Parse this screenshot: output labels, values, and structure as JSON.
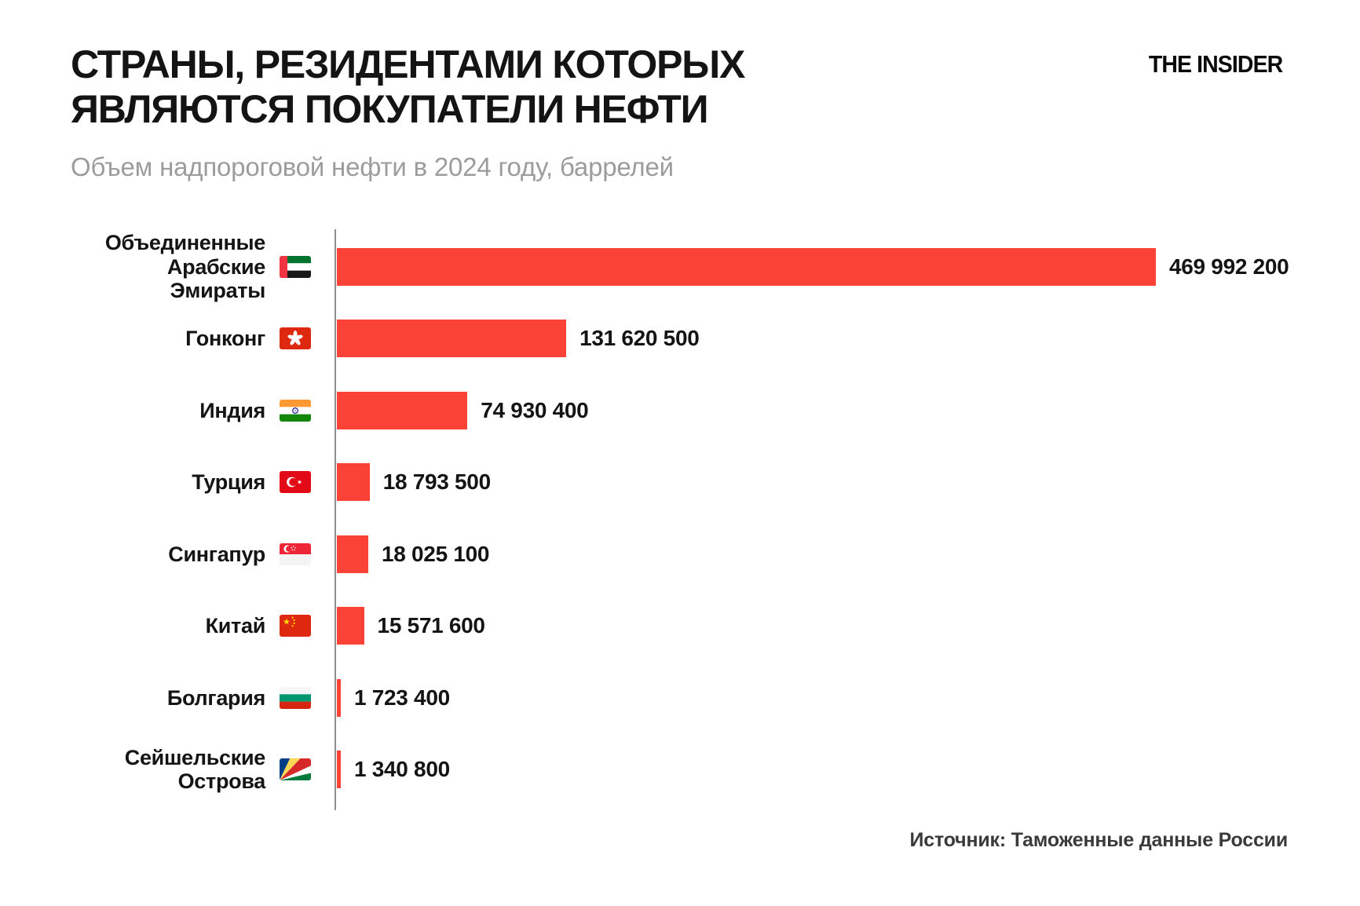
{
  "brand": {
    "logo_text": "THE INSIDER"
  },
  "header": {
    "title_line1": "СТРАНЫ, РЕЗИДЕНТАМИ КОТОРЫХ",
    "title_line2": "ЯВЛЯЮТСЯ ПОКУПАТЕЛИ НЕФТИ",
    "subtitle": "Объем надпороговой нефти в 2024 году, баррелей"
  },
  "footer": {
    "source": "Источник: Таможенные данные России"
  },
  "colors": {
    "bar": "#FA4336",
    "axis": "#8F8F8F",
    "title": "#141414",
    "subtitle": "#9C9C9C",
    "source": "#3A3A3A",
    "background": "#FFFFFF"
  },
  "chart_data": {
    "type": "bar",
    "orientation": "horizontal",
    "title": "СТРАНЫ, РЕЗИДЕНТАМИ КОТОРЫХ ЯВЛЯЮТСЯ ПОКУПАТЕЛИ НЕФТИ",
    "subtitle": "Объем надпороговой нефти в 2024 году, баррелей",
    "unit": "баррелей",
    "source": "Источник: Таможенные данные России",
    "xlim": [
      0,
      469992200
    ],
    "grid": false,
    "legend": false,
    "bar_color": "#FA4336",
    "categories": [
      "Объединенные Арабские Эмираты",
      "Гонконг",
      "Индия",
      "Турция",
      "Сингапур",
      "Китай",
      "Болгария",
      "Сейшельские Острова"
    ],
    "values": [
      469992200,
      131620500,
      74930400,
      18793500,
      18025100,
      15571600,
      1723400,
      1340800
    ],
    "rows": [
      {
        "label": "Объединенные Арабские Эмираты",
        "flag": "uae-flag-icon",
        "value": 469992200,
        "value_label": "469 992 200"
      },
      {
        "label": "Гонконг",
        "flag": "hong-kong-flag-icon",
        "value": 131620500,
        "value_label": "131 620 500"
      },
      {
        "label": "Индия",
        "flag": "india-flag-icon",
        "value": 74930400,
        "value_label": "74 930 400"
      },
      {
        "label": "Турция",
        "flag": "turkey-flag-icon",
        "value": 18793500,
        "value_label": "18 793 500"
      },
      {
        "label": "Сингапур",
        "flag": "singapore-flag-icon",
        "value": 18025100,
        "value_label": "18 025 100"
      },
      {
        "label": "Китай",
        "flag": "china-flag-icon",
        "value": 15571600,
        "value_label": "15 571 600"
      },
      {
        "label": "Болгария",
        "flag": "bulgaria-flag-icon",
        "value": 1723400,
        "value_label": "1 723 400"
      },
      {
        "label": "Сейшельские Острова",
        "flag": "seychelles-flag-icon",
        "value": 1340800,
        "value_label": "1 340 800"
      }
    ]
  }
}
